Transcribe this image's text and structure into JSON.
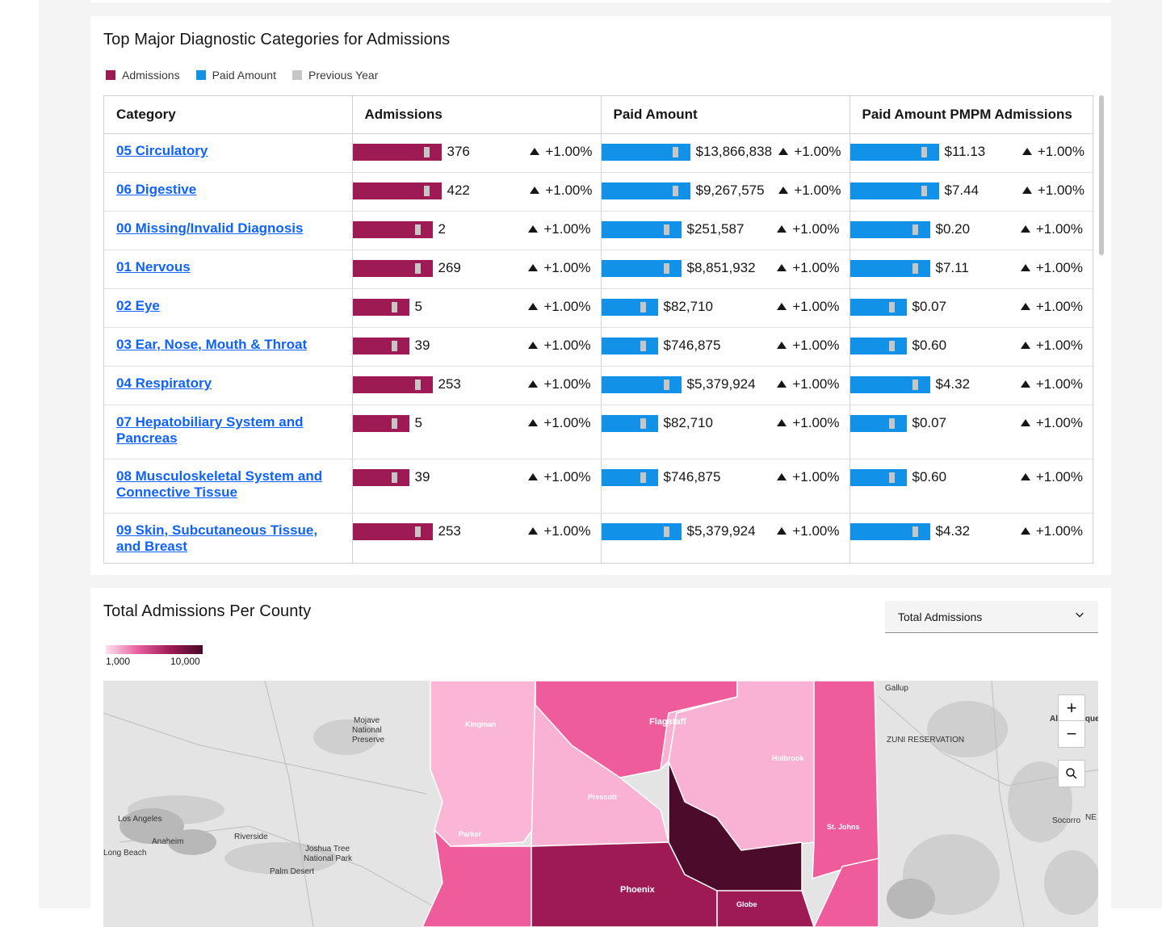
{
  "diagnostic_card": {
    "title": "Top Major Diagnostic Categories for Admissions",
    "legend": [
      {
        "label": "Admissions",
        "color": "#9e1a55"
      },
      {
        "label": "Paid Amount",
        "color": "#1192e8"
      },
      {
        "label": "Previous Year",
        "color": "#c6c6c6"
      }
    ],
    "columns": [
      "Category",
      "Admissions",
      "Paid Amount",
      "Paid Amount PMPM Admissions"
    ],
    "rows": [
      {
        "category": "05 Circulatory",
        "admissions": "376",
        "admissions_change": "+1.00%",
        "paid": "$13,866,838",
        "paid_change": "+1.00%",
        "pmpm": "$11.13",
        "pmpm_change": "+1.00%",
        "level": 1.0
      },
      {
        "category": "06 Digestive",
        "admissions": "422",
        "admissions_change": "+1.00%",
        "paid": "$9,267,575",
        "paid_change": "+1.00%",
        "pmpm": "$7.44",
        "pmpm_change": "+1.00%",
        "level": 1.0
      },
      {
        "category": "00 Missing/Invalid Diagnosis",
        "admissions": "2",
        "admissions_change": "+1.00%",
        "paid": "$251,587",
        "paid_change": "+1.00%",
        "pmpm": "$0.20",
        "pmpm_change": "+1.00%",
        "level": 0.9
      },
      {
        "category": "01 Nervous",
        "admissions": "269",
        "admissions_change": "+1.00%",
        "paid": "$8,851,932",
        "paid_change": "+1.00%",
        "pmpm": "$7.11",
        "pmpm_change": "+1.00%",
        "level": 0.9
      },
      {
        "category": "02 Eye",
        "admissions": "5",
        "admissions_change": "+1.00%",
        "paid": "$82,710",
        "paid_change": "+1.00%",
        "pmpm": "$0.07",
        "pmpm_change": "+1.00%",
        "level": 0.64
      },
      {
        "category": "03 Ear, Nose, Mouth & Throat",
        "admissions": "39",
        "admissions_change": "+1.00%",
        "paid": "$746,875",
        "paid_change": "+1.00%",
        "pmpm": "$0.60",
        "pmpm_change": "+1.00%",
        "level": 0.64
      },
      {
        "category": "04 Respiratory",
        "admissions": "253",
        "admissions_change": "+1.00%",
        "paid": "$5,379,924",
        "paid_change": "+1.00%",
        "pmpm": "$4.32",
        "pmpm_change": "+1.00%",
        "level": 0.9
      },
      {
        "category": "07 Hepatobiliary System and Pancreas",
        "admissions": "5",
        "admissions_change": "+1.00%",
        "paid": "$82,710",
        "paid_change": "+1.00%",
        "pmpm": "$0.07",
        "pmpm_change": "+1.00%",
        "level": 0.64
      },
      {
        "category": "08 Musculoskeletal System and Connective Tissue",
        "admissions": "39",
        "admissions_change": "+1.00%",
        "paid": "$746,875",
        "paid_change": "+1.00%",
        "pmpm": "$0.60",
        "pmpm_change": "+1.00%",
        "level": 0.64
      },
      {
        "category": "09 Skin, Subcutaneous Tissue, and Breast",
        "admissions": "253",
        "admissions_change": "+1.00%",
        "paid": "$5,379,924",
        "paid_change": "+1.00%",
        "pmpm": "$4.32",
        "pmpm_change": "+1.00%",
        "level": 0.9
      }
    ]
  },
  "county_card": {
    "title": "Total Admissions Per County",
    "dropdown_value": "Total Admissions",
    "scale_min": "1,000",
    "scale_max": "10,000",
    "map_labels": [
      "Mojave National Preserve",
      "Los Angeles",
      "Anaheim",
      "Riverside",
      "Long Beach",
      "Joshua Tree National Park",
      "Palm Desert",
      "Flagstaff",
      "Prescott",
      "Phoenix",
      "Holbrook",
      "St. Johns",
      "Kingman",
      "Parker",
      "Globe",
      "Gallup",
      "ZUNI RESERVATION",
      "Albuquerque",
      "Socorro",
      "NE"
    ],
    "zoom_in": "+",
    "zoom_out": "−"
  }
}
